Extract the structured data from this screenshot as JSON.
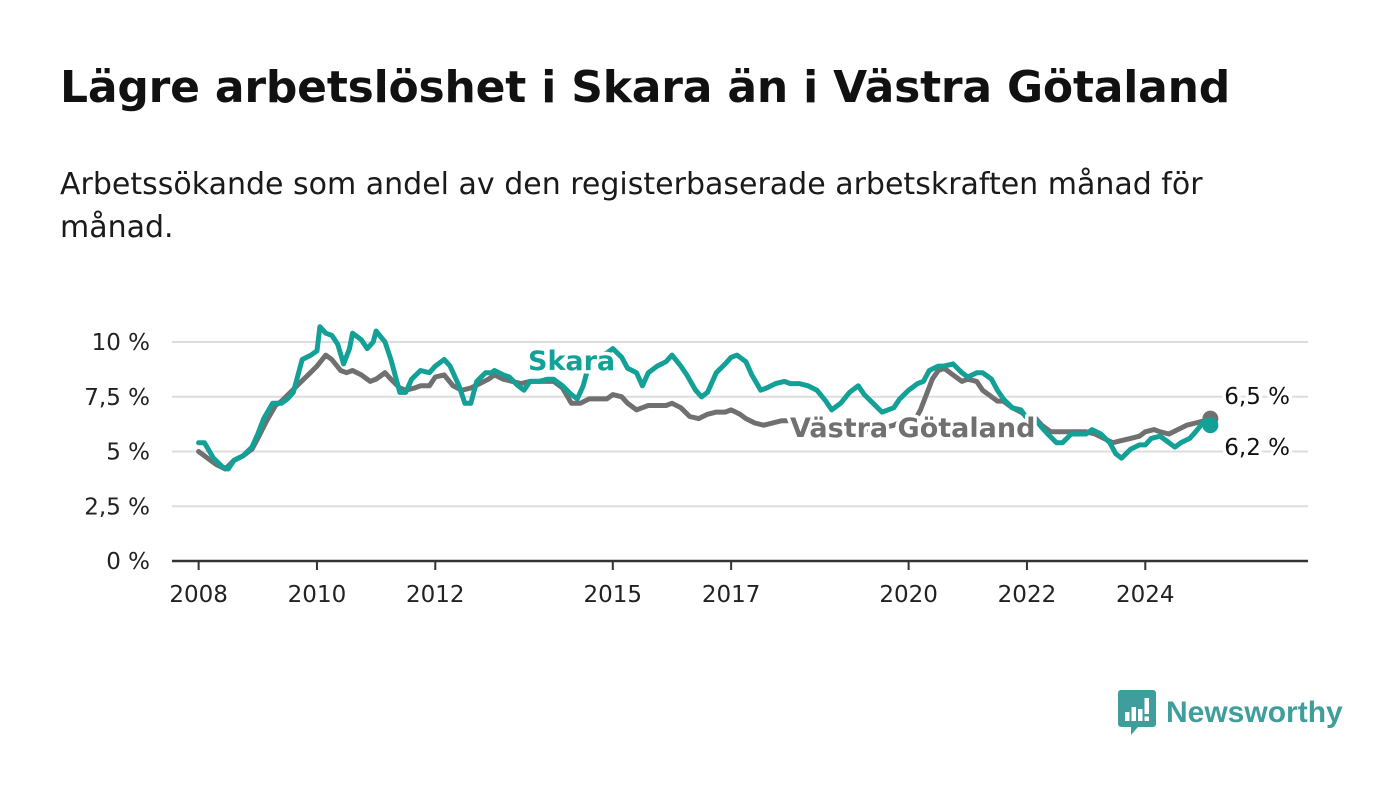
{
  "title": "Lägre arbetslöshet i Skara än i Västra Götaland",
  "subtitle": "Arbetssökande som andel av den registerbaserade arbetskraften månad för månad.",
  "brand": {
    "name": "Newsworthy",
    "icon": "newsworthy-logo-icon",
    "color": "#3f9e9c"
  },
  "colors": {
    "skara": "#12a097",
    "vastra_gotaland": "#707070",
    "grid": "#dddddd",
    "axis": "#333333"
  },
  "chart_data": {
    "type": "line",
    "xlim": [
      2007.55,
      2026.75
    ],
    "ylim": [
      0,
      10
    ],
    "x_ticks": [
      {
        "value": 2008,
        "label": "2008"
      },
      {
        "value": 2010,
        "label": "2010"
      },
      {
        "value": 2012,
        "label": "2012"
      },
      {
        "value": 2015,
        "label": "2015"
      },
      {
        "value": 2017,
        "label": "2017"
      },
      {
        "value": 2020,
        "label": "2020"
      },
      {
        "value": 2022,
        "label": "2022"
      },
      {
        "value": 2024,
        "label": "2024"
      }
    ],
    "y_ticks": [
      {
        "value": 0,
        "label": "0 %"
      },
      {
        "value": 2.5,
        "label": "2,5 %"
      },
      {
        "value": 5,
        "label": "5 %"
      },
      {
        "value": 7.5,
        "label": "7,5 %"
      },
      {
        "value": 10,
        "label": "10 %"
      }
    ],
    "grid": true,
    "series": [
      {
        "key": "skara",
        "name": "Skara",
        "color": "#12a097",
        "label_value": 6.2,
        "end_label": "6,2 %",
        "points": [
          [
            2008.0,
            5.4
          ],
          [
            2008.1,
            5.4
          ],
          [
            2008.25,
            4.7
          ],
          [
            2008.4,
            4.3
          ],
          [
            2008.5,
            4.2
          ],
          [
            2008.6,
            4.6
          ],
          [
            2008.75,
            4.8
          ],
          [
            2008.9,
            5.2
          ],
          [
            2009.0,
            5.8
          ],
          [
            2009.1,
            6.5
          ],
          [
            2009.25,
            7.2
          ],
          [
            2009.4,
            7.2
          ],
          [
            2009.5,
            7.4
          ],
          [
            2009.6,
            7.7
          ],
          [
            2009.75,
            9.2
          ],
          [
            2009.9,
            9.4
          ],
          [
            2010.0,
            9.6
          ],
          [
            2010.05,
            10.7
          ],
          [
            2010.15,
            10.4
          ],
          [
            2010.25,
            10.3
          ],
          [
            2010.35,
            9.9
          ],
          [
            2010.45,
            9.0
          ],
          [
            2010.55,
            9.7
          ],
          [
            2010.6,
            10.4
          ],
          [
            2010.75,
            10.1
          ],
          [
            2010.85,
            9.7
          ],
          [
            2010.95,
            10.0
          ],
          [
            2011.0,
            10.5
          ],
          [
            2011.15,
            10.0
          ],
          [
            2011.25,
            9.2
          ],
          [
            2011.4,
            7.7
          ],
          [
            2011.5,
            7.7
          ],
          [
            2011.6,
            8.3
          ],
          [
            2011.75,
            8.7
          ],
          [
            2011.9,
            8.6
          ],
          [
            2012.0,
            8.9
          ],
          [
            2012.15,
            9.2
          ],
          [
            2012.25,
            8.9
          ],
          [
            2012.4,
            8.0
          ],
          [
            2012.5,
            7.2
          ],
          [
            2012.6,
            7.2
          ],
          [
            2012.7,
            8.2
          ],
          [
            2012.85,
            8.6
          ],
          [
            2012.95,
            8.6
          ],
          [
            2013.0,
            8.7
          ],
          [
            2013.15,
            8.5
          ],
          [
            2013.25,
            8.4
          ],
          [
            2013.4,
            8.0
          ],
          [
            2013.5,
            7.8
          ],
          [
            2013.6,
            8.2
          ],
          [
            2013.75,
            8.2
          ],
          [
            2013.9,
            8.3
          ],
          [
            2014.0,
            8.3
          ],
          [
            2014.15,
            8.0
          ],
          [
            2014.3,
            7.6
          ],
          [
            2014.4,
            7.4
          ],
          [
            2014.5,
            8.0
          ],
          [
            2014.6,
            9.0
          ],
          [
            2014.75,
            9.3
          ],
          [
            2014.9,
            9.5
          ],
          [
            2015.0,
            9.7
          ],
          [
            2015.15,
            9.3
          ],
          [
            2015.25,
            8.8
          ],
          [
            2015.4,
            8.6
          ],
          [
            2015.5,
            8.0
          ],
          [
            2015.6,
            8.6
          ],
          [
            2015.75,
            8.9
          ],
          [
            2015.9,
            9.1
          ],
          [
            2016.0,
            9.4
          ],
          [
            2016.15,
            8.9
          ],
          [
            2016.25,
            8.5
          ],
          [
            2016.4,
            7.8
          ],
          [
            2016.5,
            7.5
          ],
          [
            2016.6,
            7.7
          ],
          [
            2016.75,
            8.6
          ],
          [
            2016.9,
            9.0
          ],
          [
            2017.0,
            9.3
          ],
          [
            2017.1,
            9.4
          ],
          [
            2017.25,
            9.1
          ],
          [
            2017.35,
            8.5
          ],
          [
            2017.5,
            7.8
          ],
          [
            2017.6,
            7.9
          ],
          [
            2017.75,
            8.1
          ],
          [
            2017.9,
            8.2
          ],
          [
            2018.0,
            8.1
          ],
          [
            2018.15,
            8.1
          ],
          [
            2018.3,
            8.0
          ],
          [
            2018.45,
            7.8
          ],
          [
            2018.6,
            7.3
          ],
          [
            2018.7,
            6.9
          ],
          [
            2018.85,
            7.2
          ],
          [
            2019.0,
            7.7
          ],
          [
            2019.15,
            8.0
          ],
          [
            2019.25,
            7.6
          ],
          [
            2019.4,
            7.2
          ],
          [
            2019.55,
            6.8
          ],
          [
            2019.75,
            7.0
          ],
          [
            2019.85,
            7.4
          ],
          [
            2020.0,
            7.8
          ],
          [
            2020.15,
            8.1
          ],
          [
            2020.25,
            8.2
          ],
          [
            2020.35,
            8.7
          ],
          [
            2020.5,
            8.9
          ],
          [
            2020.6,
            8.9
          ],
          [
            2020.75,
            9.0
          ],
          [
            2020.9,
            8.6
          ],
          [
            2021.0,
            8.4
          ],
          [
            2021.15,
            8.6
          ],
          [
            2021.25,
            8.6
          ],
          [
            2021.4,
            8.3
          ],
          [
            2021.5,
            7.8
          ],
          [
            2021.6,
            7.4
          ],
          [
            2021.75,
            7.0
          ],
          [
            2021.9,
            6.9
          ],
          [
            2022.0,
            6.5
          ],
          [
            2022.1,
            6.6
          ],
          [
            2022.25,
            6.1
          ],
          [
            2022.35,
            5.8
          ],
          [
            2022.5,
            5.4
          ],
          [
            2022.6,
            5.4
          ],
          [
            2022.75,
            5.8
          ],
          [
            2022.9,
            5.8
          ],
          [
            2023.0,
            5.8
          ],
          [
            2023.1,
            6.0
          ],
          [
            2023.25,
            5.8
          ],
          [
            2023.4,
            5.4
          ],
          [
            2023.5,
            4.9
          ],
          [
            2023.6,
            4.7
          ],
          [
            2023.75,
            5.1
          ],
          [
            2023.9,
            5.3
          ],
          [
            2024.0,
            5.3
          ],
          [
            2024.1,
            5.6
          ],
          [
            2024.25,
            5.7
          ],
          [
            2024.4,
            5.4
          ],
          [
            2024.5,
            5.2
          ],
          [
            2024.6,
            5.4
          ],
          [
            2024.75,
            5.6
          ],
          [
            2024.85,
            5.9
          ],
          [
            2025.0,
            6.4
          ],
          [
            2025.1,
            6.2
          ]
        ]
      },
      {
        "key": "vastra_gotaland",
        "name": "Västra Götaland",
        "color": "#707070",
        "label_value": 6.5,
        "end_label": "6,5 %",
        "points": [
          [
            2008.0,
            5.0
          ],
          [
            2008.15,
            4.7
          ],
          [
            2008.3,
            4.4
          ],
          [
            2008.45,
            4.2
          ],
          [
            2008.6,
            4.6
          ],
          [
            2008.75,
            4.8
          ],
          [
            2008.9,
            5.1
          ],
          [
            2009.0,
            5.6
          ],
          [
            2009.15,
            6.4
          ],
          [
            2009.3,
            7.1
          ],
          [
            2009.4,
            7.3
          ],
          [
            2009.55,
            7.7
          ],
          [
            2009.7,
            8.1
          ],
          [
            2009.85,
            8.5
          ],
          [
            2010.0,
            8.9
          ],
          [
            2010.15,
            9.4
          ],
          [
            2010.25,
            9.2
          ],
          [
            2010.4,
            8.7
          ],
          [
            2010.5,
            8.6
          ],
          [
            2010.6,
            8.7
          ],
          [
            2010.75,
            8.5
          ],
          [
            2010.9,
            8.2
          ],
          [
            2011.0,
            8.3
          ],
          [
            2011.15,
            8.6
          ],
          [
            2011.25,
            8.3
          ],
          [
            2011.4,
            7.9
          ],
          [
            2011.5,
            7.8
          ],
          [
            2011.65,
            7.9
          ],
          [
            2011.75,
            8.0
          ],
          [
            2011.9,
            8.0
          ],
          [
            2012.0,
            8.4
          ],
          [
            2012.15,
            8.5
          ],
          [
            2012.3,
            8.0
          ],
          [
            2012.45,
            7.8
          ],
          [
            2012.6,
            7.9
          ],
          [
            2012.75,
            8.1
          ],
          [
            2012.9,
            8.3
          ],
          [
            2013.0,
            8.5
          ],
          [
            2013.15,
            8.3
          ],
          [
            2013.3,
            8.2
          ],
          [
            2013.45,
            8.1
          ],
          [
            2013.6,
            8.2
          ],
          [
            2013.75,
            8.2
          ],
          [
            2013.9,
            8.2
          ],
          [
            2014.0,
            8.2
          ],
          [
            2014.15,
            7.9
          ],
          [
            2014.3,
            7.2
          ],
          [
            2014.45,
            7.2
          ],
          [
            2014.6,
            7.4
          ],
          [
            2014.75,
            7.4
          ],
          [
            2014.9,
            7.4
          ],
          [
            2015.0,
            7.6
          ],
          [
            2015.15,
            7.5
          ],
          [
            2015.25,
            7.2
          ],
          [
            2015.4,
            6.9
          ],
          [
            2015.5,
            7.0
          ],
          [
            2015.6,
            7.1
          ],
          [
            2015.75,
            7.1
          ],
          [
            2015.9,
            7.1
          ],
          [
            2016.0,
            7.2
          ],
          [
            2016.15,
            7.0
          ],
          [
            2016.3,
            6.6
          ],
          [
            2016.45,
            6.5
          ],
          [
            2016.6,
            6.7
          ],
          [
            2016.75,
            6.8
          ],
          [
            2016.9,
            6.8
          ],
          [
            2017.0,
            6.9
          ],
          [
            2017.15,
            6.7
          ],
          [
            2017.25,
            6.5
          ],
          [
            2017.4,
            6.3
          ],
          [
            2017.55,
            6.2
          ],
          [
            2017.7,
            6.3
          ],
          [
            2017.85,
            6.4
          ],
          [
            2018.0,
            6.4
          ],
          [
            2018.15,
            6.3
          ],
          [
            2018.3,
            6.1
          ],
          [
            2018.45,
            5.9
          ],
          [
            2018.6,
            5.9
          ],
          [
            2018.75,
            6.0
          ],
          [
            2018.9,
            6.1
          ],
          [
            2019.0,
            6.2
          ],
          [
            2019.15,
            6.1
          ],
          [
            2019.3,
            6.0
          ],
          [
            2019.45,
            6.0
          ],
          [
            2019.6,
            6.1
          ],
          [
            2019.75,
            6.2
          ],
          [
            2019.9,
            6.4
          ],
          [
            2020.0,
            6.5
          ],
          [
            2020.1,
            6.4
          ],
          [
            2020.2,
            6.9
          ],
          [
            2020.3,
            7.6
          ],
          [
            2020.4,
            8.3
          ],
          [
            2020.5,
            8.7
          ],
          [
            2020.6,
            8.8
          ],
          [
            2020.75,
            8.5
          ],
          [
            2020.9,
            8.2
          ],
          [
            2021.0,
            8.3
          ],
          [
            2021.15,
            8.2
          ],
          [
            2021.25,
            7.8
          ],
          [
            2021.4,
            7.5
          ],
          [
            2021.5,
            7.3
          ],
          [
            2021.6,
            7.3
          ],
          [
            2021.75,
            7.0
          ],
          [
            2021.9,
            6.8
          ],
          [
            2022.0,
            6.6
          ],
          [
            2022.15,
            6.5
          ],
          [
            2022.25,
            6.2
          ],
          [
            2022.4,
            5.9
          ],
          [
            2022.55,
            5.9
          ],
          [
            2022.7,
            5.9
          ],
          [
            2022.85,
            5.9
          ],
          [
            2023.0,
            5.9
          ],
          [
            2023.15,
            5.8
          ],
          [
            2023.3,
            5.6
          ],
          [
            2023.45,
            5.4
          ],
          [
            2023.6,
            5.5
          ],
          [
            2023.75,
            5.6
          ],
          [
            2023.9,
            5.7
          ],
          [
            2024.0,
            5.9
          ],
          [
            2024.15,
            6.0
          ],
          [
            2024.25,
            5.9
          ],
          [
            2024.4,
            5.8
          ],
          [
            2024.55,
            6.0
          ],
          [
            2024.7,
            6.2
          ],
          [
            2024.85,
            6.3
          ],
          [
            2025.0,
            6.4
          ],
          [
            2025.1,
            6.5
          ]
        ]
      }
    ]
  }
}
